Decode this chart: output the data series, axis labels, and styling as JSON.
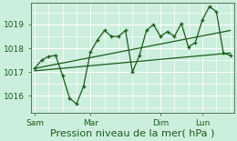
{
  "bg_color": "#cceedd",
  "grid_color": "#ffffff",
  "line_color": "#1a5c1a",
  "xlabel": "Pression niveau de la mer( hPa )",
  "xlabel_fontsize": 8,
  "yticks": [
    1016,
    1017,
    1018,
    1019
  ],
  "ylim": [
    1015.3,
    1019.9
  ],
  "xtick_labels": [
    "Sam",
    "Mar",
    "Dim",
    "Lun"
  ],
  "xtick_positions": [
    0,
    8,
    18,
    24
  ],
  "xlim": [
    -0.5,
    28.5
  ],
  "series1_x": [
    0,
    1,
    2,
    3,
    4,
    5,
    6,
    7,
    8,
    9,
    10,
    11,
    12,
    13,
    14,
    15,
    16,
    17,
    18,
    19,
    20,
    21,
    22,
    23,
    24,
    25,
    26,
    27,
    28
  ],
  "series1_y": [
    1017.15,
    1017.5,
    1017.65,
    1017.7,
    1016.85,
    1015.9,
    1015.65,
    1016.4,
    1017.85,
    1018.35,
    1018.75,
    1018.5,
    1018.5,
    1018.75,
    1017.0,
    1017.7,
    1018.75,
    1019.0,
    1018.5,
    1018.7,
    1018.5,
    1019.05,
    1018.05,
    1018.25,
    1019.2,
    1019.75,
    1019.55,
    1017.8,
    1017.7
  ],
  "series2_x": [
    0,
    28
  ],
  "series2_y": [
    1017.05,
    1017.8
  ],
  "series3_x": [
    0,
    28
  ],
  "series3_y": [
    1017.15,
    1018.75
  ],
  "vline_positions": [
    0,
    8,
    18,
    24
  ],
  "vline_color": "#557755",
  "minor_ytick_interval": 0.5,
  "minor_xtick_interval": 2
}
